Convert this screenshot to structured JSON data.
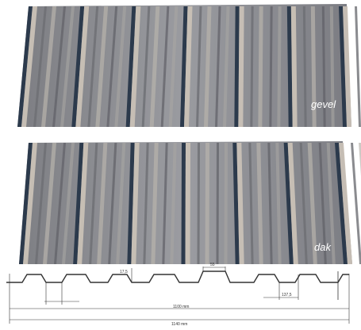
{
  "panels": [
    {
      "id": "gevel",
      "label": "gevel"
    },
    {
      "id": "dak",
      "label": "dak"
    }
  ],
  "profile": {
    "dimensions": {
      "height": "17,5",
      "crest_width": "55",
      "valley_width": "137,5",
      "cover_width": "1100 mm",
      "total_width": "1140 mm"
    }
  },
  "colors": {
    "sheet_base": "#8a8b90",
    "rib_dark": "#2c3a4c",
    "rib_light": "#c9c1b6",
    "line": "#333333"
  }
}
